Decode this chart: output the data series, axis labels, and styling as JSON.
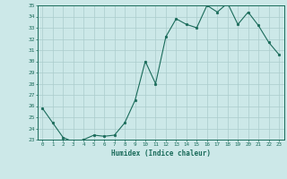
{
  "x": [
    0,
    1,
    2,
    3,
    4,
    5,
    6,
    7,
    8,
    9,
    10,
    11,
    12,
    13,
    14,
    15,
    16,
    17,
    18,
    19,
    20,
    21,
    22,
    23
  ],
  "y": [
    25.8,
    24.5,
    23.2,
    22.8,
    23.0,
    23.4,
    23.3,
    23.4,
    24.5,
    26.5,
    30.0,
    28.0,
    32.2,
    33.8,
    33.3,
    33.0,
    35.0,
    34.4,
    35.2,
    33.3,
    34.4,
    33.2,
    31.7,
    30.6
  ],
  "xlabel": "Humidex (Indice chaleur)",
  "ylabel": "",
  "ylim": [
    23,
    35
  ],
  "xlim": [
    -0.5,
    23.5
  ],
  "yticks": [
    23,
    24,
    25,
    26,
    27,
    28,
    29,
    30,
    31,
    32,
    33,
    34,
    35
  ],
  "xticks": [
    0,
    1,
    2,
    3,
    4,
    5,
    6,
    7,
    8,
    9,
    10,
    11,
    12,
    13,
    14,
    15,
    16,
    17,
    18,
    19,
    20,
    21,
    22,
    23
  ],
  "line_color": "#1a6b5a",
  "marker_color": "#1a6b5a",
  "bg_color": "#cce8e8",
  "grid_color": "#aacccc",
  "title": ""
}
